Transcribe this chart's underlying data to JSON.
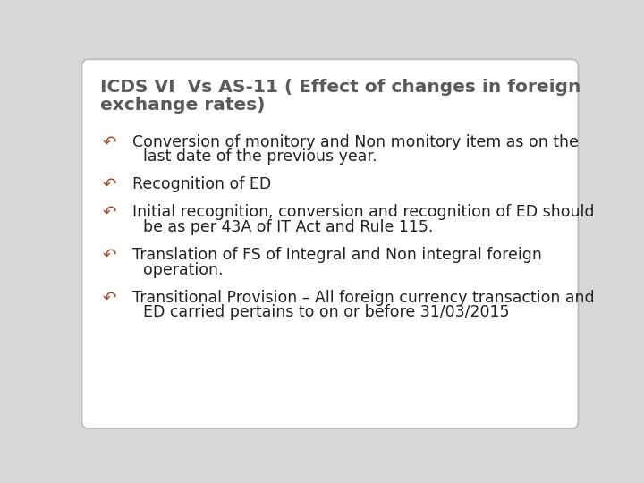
{
  "title_line1": "ICDS VI  Vs AS-11 ( Effect of changes in foreign",
  "title_line2": "exchange rates)",
  "title_color": "#5a5a5a",
  "title_fontsize": 14.5,
  "background_color": "#d8d8d8",
  "card_color": "#ffffff",
  "border_color": "#bbbbbb",
  "bullet_color": "#a0522d",
  "text_color": "#222222",
  "bullet_symbol": "↶",
  "items": [
    {
      "first_line": "Conversion of monitory and Non monitory item as on the",
      "second_line": "last date of the previous year."
    },
    {
      "first_line": "Recognition of ED",
      "second_line": null
    },
    {
      "first_line": "Initial recognition, conversion and recognition of ED should",
      "second_line": "be as per 43A of IT Act and Rule 115."
    },
    {
      "first_line": "Translation of FS of Integral and Non integral foreign",
      "second_line": "operation."
    },
    {
      "first_line": "Transitional Provision – All foreign currency transaction and",
      "second_line": "ED carried pertains to on or before 31/03/2015"
    }
  ],
  "item_fontsize": 12.5,
  "bullet_fontsize": 13.5
}
